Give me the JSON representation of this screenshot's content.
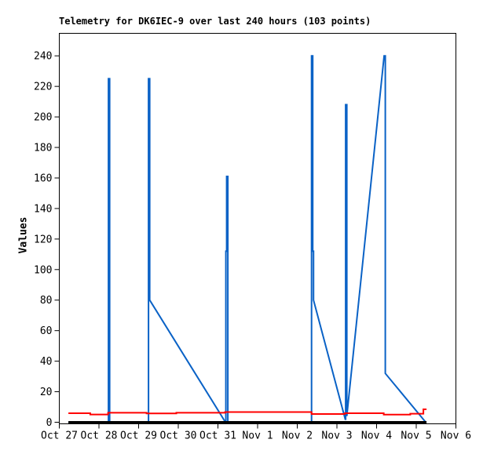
{
  "chart": {
    "title": "Telemetry for DK6IEC-9 over last 240 hours (103 points)",
    "ylabel": "Values"
  },
  "chart_data": {
    "type": "line",
    "title": "Telemetry for DK6IEC-9 over last 240 hours (103 points)",
    "xlabel": "",
    "ylabel": "Values",
    "station": "DK6IEC-9",
    "window_hours": 240,
    "point_count": 103,
    "grid": false,
    "legend": null,
    "x_axis": {
      "unit": "days since Oct 27",
      "tick_positions": [
        0,
        1,
        2,
        3,
        4,
        5,
        6,
        7,
        8,
        9,
        10
      ],
      "tick_labels": [
        "Oct 27",
        "Oct 28",
        "Oct 29",
        "Oct 30",
        "Oct 31",
        "Nov 1",
        "Nov 2",
        "Nov 3",
        "Nov 4",
        "Nov 5",
        "Nov 6"
      ]
    },
    "y_axis": {
      "min": 0,
      "max": 240,
      "tick_step": 20,
      "ticks": [
        0,
        20,
        40,
        60,
        80,
        100,
        120,
        140,
        160,
        180,
        200,
        220,
        240
      ]
    },
    "xlim": [
      0,
      10
    ],
    "ylim": [
      0,
      255
    ],
    "notable_values": {
      "blue_spikes": [
        {
          "near": "Oct 28",
          "peak": 225
        },
        {
          "near": "Oct 29",
          "peak": 225,
          "then": 80,
          "decays_to_zero_by": "Oct 31"
        },
        {
          "near": "Oct 31",
          "peak": 161,
          "step": 112
        },
        {
          "near": "Nov 2",
          "peak": 240,
          "step": 112,
          "then": 80,
          "decays_to_zero_by": "Nov 3"
        },
        {
          "near": "Nov 3",
          "peak": 208
        },
        {
          "near": "Nov 4",
          "peak": 240,
          "then": 32,
          "decays_to_zero_by": "Nov 5"
        }
      ],
      "red_level": "approx 5-7, ends near 8.5",
      "black_level": 0
    },
    "series": [
      {
        "name": "channel-blue",
        "color": "#0a62c6",
        "stroke_width": 2,
        "points": [
          [
            0.23,
            0
          ],
          [
            1.24,
            0
          ],
          [
            1.24,
            225
          ],
          [
            1.27,
            225
          ],
          [
            1.27,
            0
          ],
          [
            2.25,
            0
          ],
          [
            2.25,
            225
          ],
          [
            2.28,
            225
          ],
          [
            2.28,
            80
          ],
          [
            4.19,
            0
          ],
          [
            4.2,
            0
          ],
          [
            4.2,
            112
          ],
          [
            4.22,
            112
          ],
          [
            4.22,
            161
          ],
          [
            4.25,
            161
          ],
          [
            4.25,
            0
          ],
          [
            6.36,
            0
          ],
          [
            6.36,
            240
          ],
          [
            6.39,
            240
          ],
          [
            6.39,
            112
          ],
          [
            6.41,
            112
          ],
          [
            6.41,
            80
          ],
          [
            7.21,
            2
          ],
          [
            7.22,
            2
          ],
          [
            7.22,
            208
          ],
          [
            7.25,
            208
          ],
          [
            7.25,
            4
          ],
          [
            8.19,
            240
          ],
          [
            8.22,
            240
          ],
          [
            8.22,
            32
          ],
          [
            9.24,
            0
          ]
        ]
      },
      {
        "name": "channel-black",
        "color": "#000000",
        "stroke_width": 3,
        "points": [
          [
            0.23,
            0
          ],
          [
            9.26,
            0
          ]
        ]
      },
      {
        "name": "channel-red",
        "color": "#ff0000",
        "stroke_width": 2,
        "points": [
          [
            0.23,
            5.9
          ],
          [
            0.78,
            5.9
          ],
          [
            0.78,
            5.1
          ],
          [
            1.23,
            5.1
          ],
          [
            1.23,
            6.2
          ],
          [
            2.2,
            6.2
          ],
          [
            2.2,
            5.8
          ],
          [
            2.95,
            5.8
          ],
          [
            2.95,
            6.2
          ],
          [
            4.18,
            6.2
          ],
          [
            4.18,
            6.7
          ],
          [
            6.36,
            6.7
          ],
          [
            6.36,
            5.4
          ],
          [
            7.2,
            5.4
          ],
          [
            7.2,
            5.9
          ],
          [
            8.18,
            5.9
          ],
          [
            8.18,
            5.0
          ],
          [
            8.85,
            5.0
          ],
          [
            8.85,
            5.6
          ],
          [
            9.18,
            5.6
          ],
          [
            9.18,
            8.5
          ],
          [
            9.26,
            8.5
          ]
        ]
      }
    ]
  }
}
